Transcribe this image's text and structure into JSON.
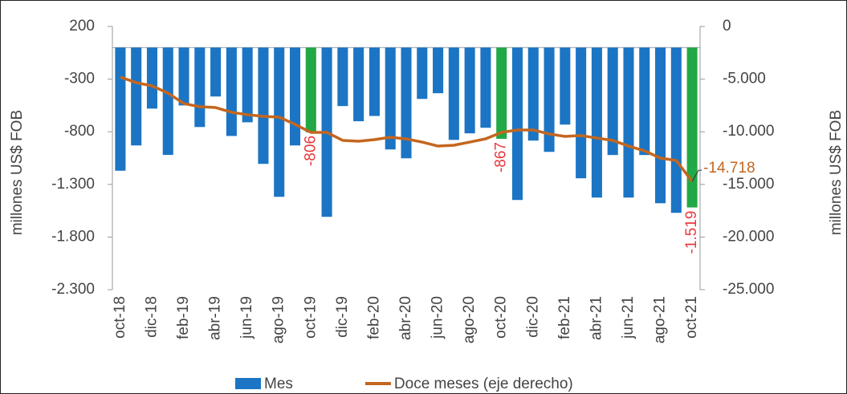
{
  "chart_data": {
    "type": "bar_line",
    "y_label": "millones US$ FOB",
    "y2_label": "millones US$ FOB",
    "categories": [
      "oct-18",
      null,
      "dic-18",
      null,
      "feb-19",
      null,
      "abr-19",
      null,
      "jun-19",
      null,
      "ago-19",
      null,
      "oct-19",
      null,
      "dic-19",
      null,
      "feb-20",
      null,
      "abr-20",
      null,
      "jun-20",
      null,
      "ago-20",
      null,
      "oct-20",
      null,
      "dic-20",
      null,
      "feb-21",
      null,
      "abr-21",
      null,
      "jun-21",
      null,
      "ago-21",
      null,
      "oct-21"
    ],
    "ylim": [
      200,
      -2300
    ],
    "yticks": [
      200,
      {
        "value": -300,
        "label": "-300"
      },
      {
        "value": -800,
        "label": "-800"
      },
      {
        "value": -1300,
        "label": "-1.300"
      },
      {
        "value": -1800,
        "label": "-1.800"
      },
      {
        "value": -2300,
        "label": "-2.300"
      }
    ],
    "y2lim": [
      0,
      -25000
    ],
    "y2ticks": [
      0,
      {
        "value": -5000,
        "label": "-5.000"
      },
      {
        "value": -10000,
        "label": "-10.000"
      },
      {
        "value": -15000,
        "label": "-15.000"
      },
      {
        "value": -20000,
        "label": "-20.000"
      },
      {
        "value": -25000,
        "label": "-25.000"
      }
    ],
    "series": [
      {
        "name": "Mes",
        "type": "bar",
        "color": "#1b75c4",
        "point_colors": [
          null,
          null,
          null,
          null,
          null,
          null,
          null,
          null,
          null,
          null,
          null,
          null,
          "#22a846",
          null,
          null,
          null,
          null,
          null,
          null,
          null,
          null,
          null,
          null,
          null,
          "#22a846",
          null,
          null,
          null,
          null,
          null,
          null,
          null,
          null,
          null,
          null,
          null,
          "#22a846"
        ],
        "values": [
          -1170,
          -930,
          -580,
          -1020,
          -550,
          -755,
          -465,
          -840,
          -710,
          -1105,
          -1418,
          -930,
          -806,
          -1608,
          -556,
          -700,
          -650,
          -968,
          -1052,
          -488,
          -434,
          -877,
          -815,
          -762,
          -867,
          -1448,
          -884,
          -991,
          -732,
          -1242,
          -1425,
          -1021,
          -1425,
          -1021,
          -1479,
          -1570,
          -1519
        ],
        "value_labels": [
          null,
          null,
          null,
          null,
          null,
          null,
          null,
          null,
          null,
          null,
          null,
          null,
          "-806",
          null,
          null,
          null,
          null,
          null,
          null,
          null,
          null,
          null,
          null,
          null,
          "-867",
          null,
          null,
          null,
          null,
          null,
          null,
          null,
          null,
          null,
          null,
          null,
          "-1.519"
        ],
        "label_color": "#e8383d"
      },
      {
        "name": "Doce meses (eje derecho)",
        "type": "line",
        "axis": "y2",
        "color": "#c4661f",
        "values": [
          -4800,
          -5340,
          -5640,
          -6330,
          -7320,
          -7620,
          -7700,
          -8150,
          -8380,
          -8540,
          -8610,
          -9300,
          -10060,
          -10060,
          -10820,
          -10900,
          -10750,
          -10520,
          -10680,
          -10980,
          -11360,
          -11280,
          -10980,
          -10670,
          -10060,
          -9830,
          -9830,
          -10210,
          -10440,
          -10360,
          -10600,
          -10820,
          -11360,
          -11810,
          -12500,
          -12730,
          -14718
        ],
        "value_labels": [
          null,
          null,
          null,
          null,
          null,
          null,
          null,
          null,
          null,
          null,
          null,
          null,
          null,
          null,
          null,
          null,
          null,
          null,
          null,
          null,
          null,
          null,
          null,
          null,
          null,
          null,
          null,
          null,
          null,
          null,
          null,
          null,
          null,
          null,
          null,
          null,
          "-14.718"
        ]
      }
    ]
  }
}
